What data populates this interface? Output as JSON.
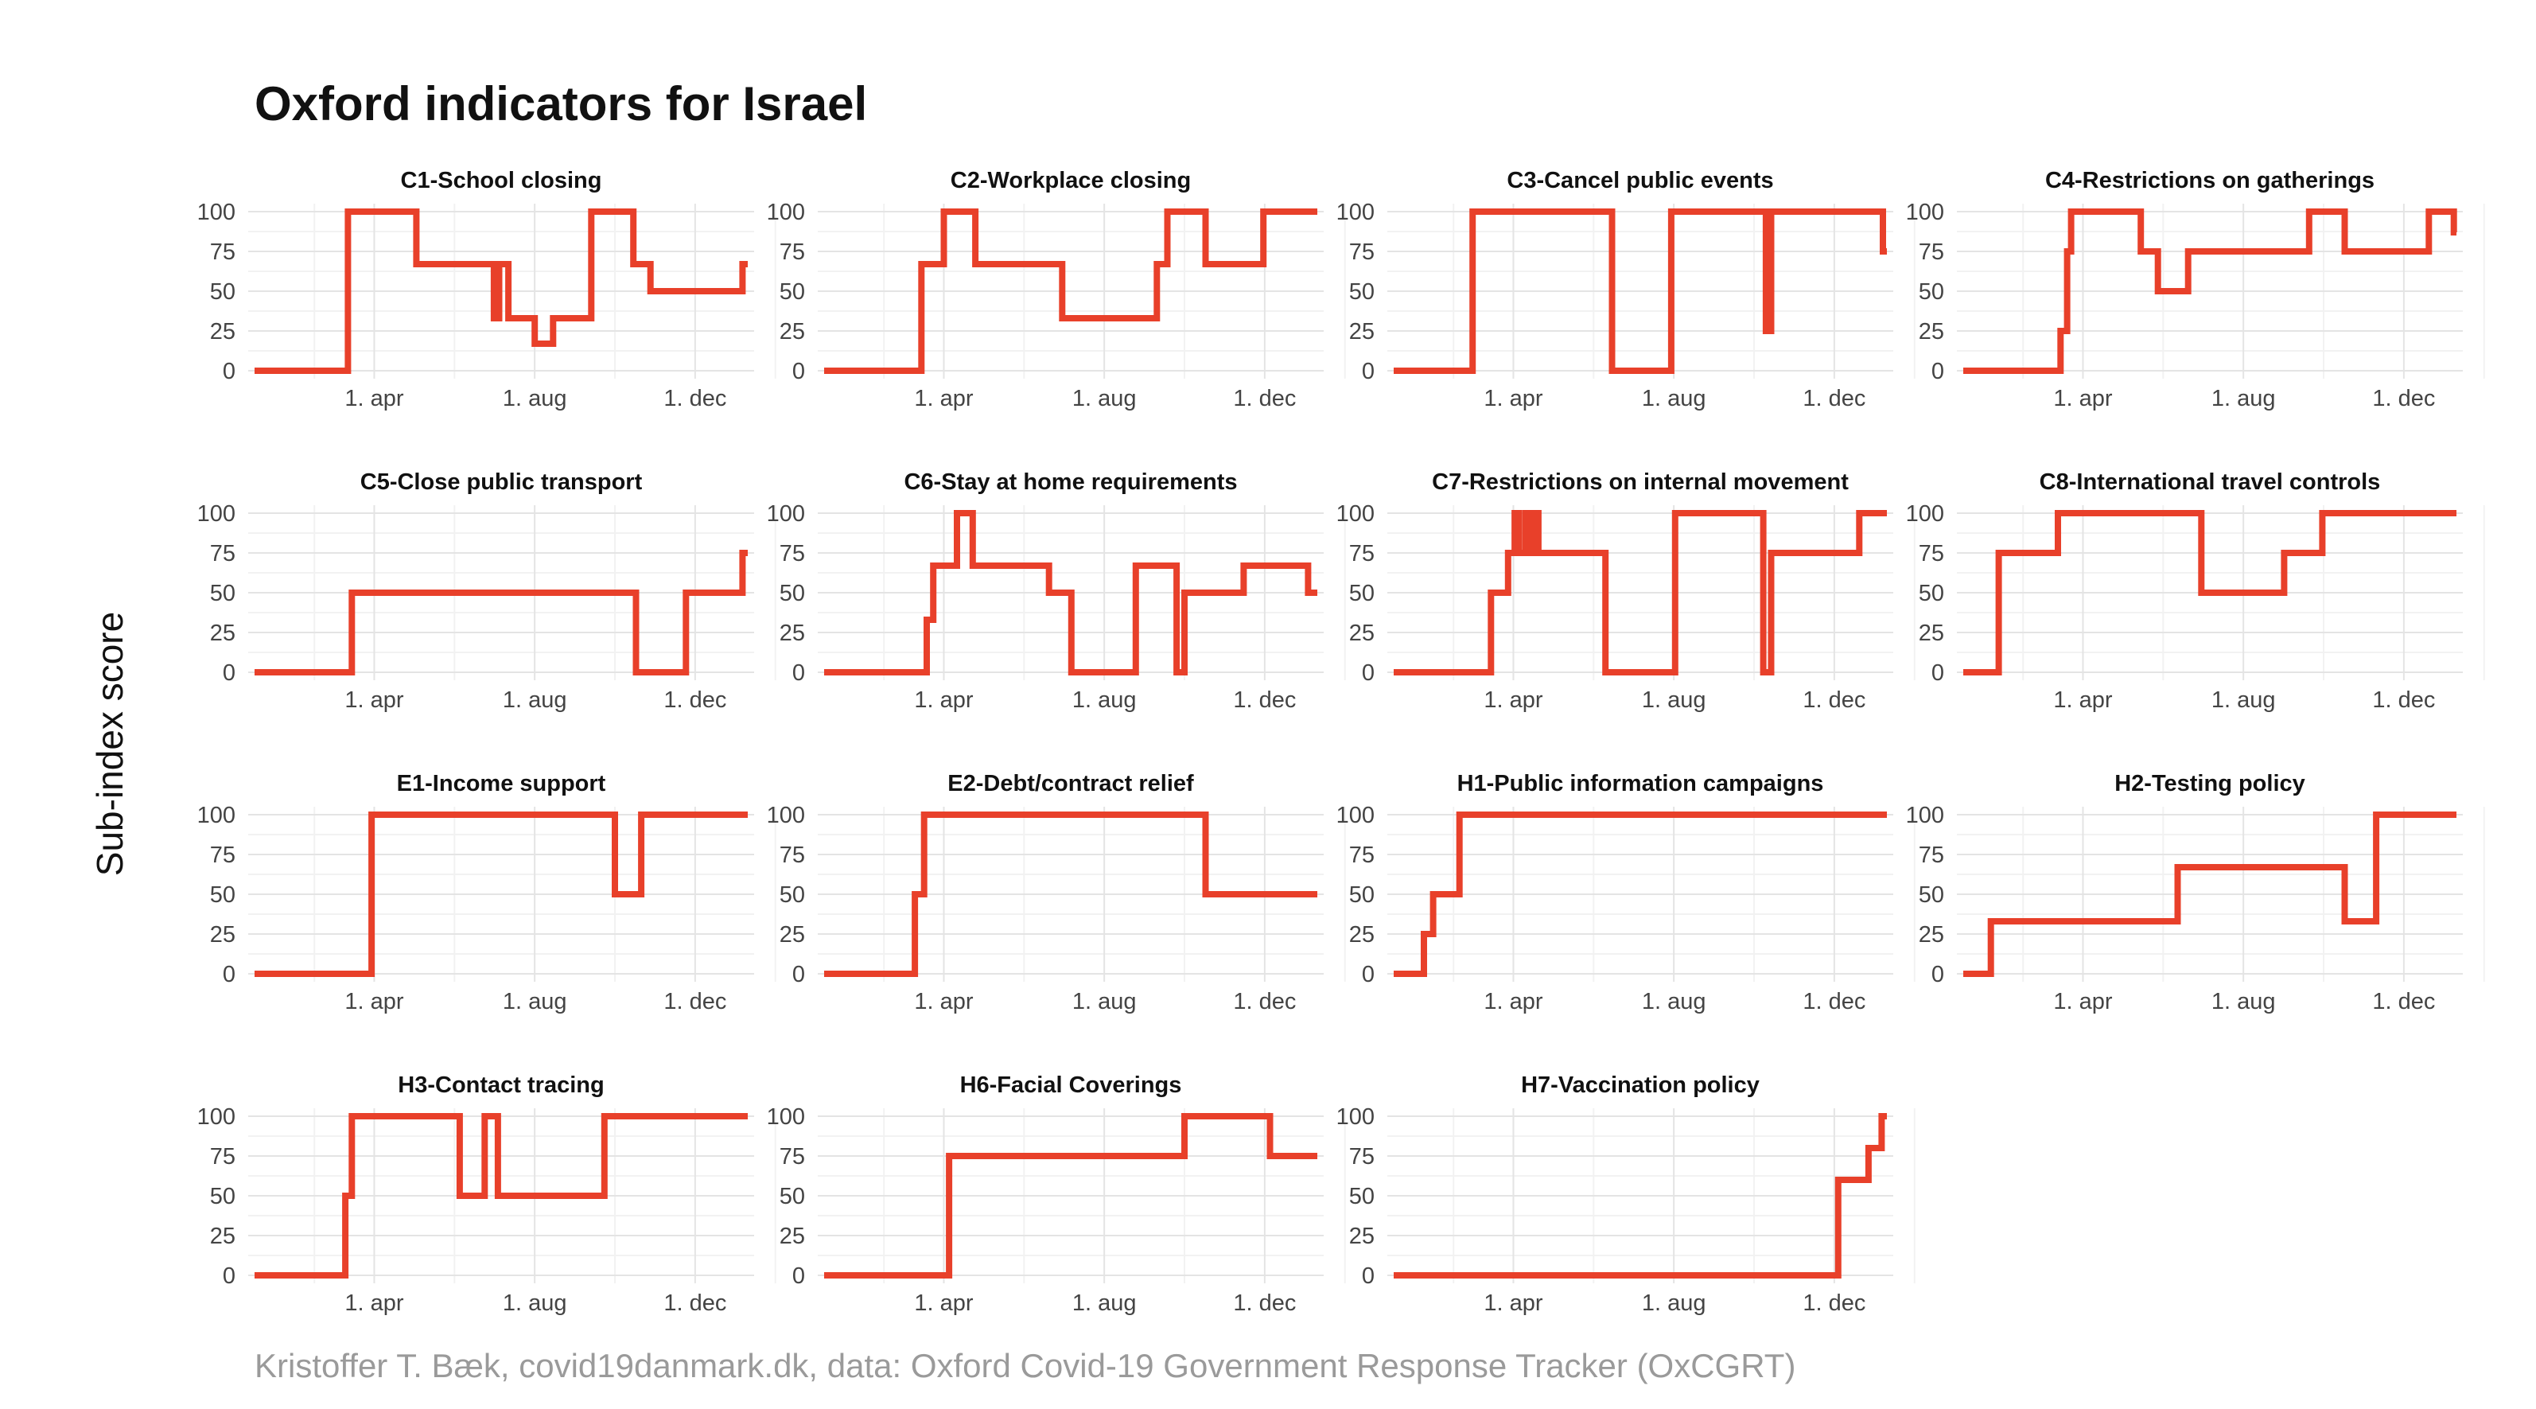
{
  "title": "Oxford indicators for Israel",
  "ylabel": "Sub-index score",
  "caption": "Kristoffer T. Bæk, covid19danmark.dk, data: Oxford Covid-19 Government Response Tracker (OxCGRT)",
  "line_color": "#e8402a",
  "chart_data": {
    "type": "line",
    "facet": true,
    "ylim": [
      0,
      100
    ],
    "yticks": [
      0,
      25,
      50,
      75,
      100
    ],
    "xlim": [
      "2020-01-01",
      "2021-01-10"
    ],
    "xticks": [
      {
        "value": "2020-04-01",
        "label": "1. apr"
      },
      {
        "value": "2020-08-01",
        "label": "1. aug"
      },
      {
        "value": "2020-12-01",
        "label": "1. dec"
      }
    ],
    "grid": true,
    "panels": [
      {
        "title": "C1-School closing",
        "x": [
          "2020-01-01",
          "2020-03-12",
          "2020-03-12",
          "2020-05-03",
          "2020-05-03",
          "2020-07-01",
          "2020-07-01",
          "2020-07-05",
          "2020-07-05",
          "2020-07-12",
          "2020-07-12",
          "2020-07-20",
          "2020-07-20",
          "2020-08-01",
          "2020-08-01",
          "2020-08-15",
          "2020-08-15",
          "2020-09-13",
          "2020-09-13",
          "2020-10-15",
          "2020-10-15",
          "2020-10-28",
          "2020-10-28",
          "2021-01-06",
          "2021-01-06",
          "2021-01-10"
        ],
        "y": [
          0,
          0,
          100,
          100,
          67,
          67,
          33,
          33,
          67,
          67,
          33,
          33,
          33,
          33,
          17,
          17,
          33,
          33,
          100,
          100,
          67,
          67,
          50,
          50,
          67,
          67
        ]
      },
      {
        "title": "C2-Workplace closing",
        "x": [
          "2020-01-01",
          "2020-03-15",
          "2020-03-15",
          "2020-04-01",
          "2020-04-01",
          "2020-04-25",
          "2020-04-25",
          "2020-06-30",
          "2020-06-30",
          "2020-09-10",
          "2020-09-10",
          "2020-09-18",
          "2020-09-18",
          "2020-10-17",
          "2020-10-17",
          "2020-11-30",
          "2020-11-30",
          "2021-01-10"
        ],
        "y": [
          0,
          0,
          67,
          67,
          100,
          100,
          67,
          67,
          33,
          33,
          67,
          67,
          100,
          100,
          67,
          67,
          100,
          100
        ]
      },
      {
        "title": "C3-Cancel public events",
        "x": [
          "2020-01-01",
          "2020-03-01",
          "2020-03-01",
          "2020-06-15",
          "2020-06-15",
          "2020-07-30",
          "2020-07-30",
          "2020-10-10",
          "2020-10-10",
          "2020-10-14",
          "2020-10-14",
          "2021-01-07",
          "2021-01-07",
          "2021-01-10"
        ],
        "y": [
          0,
          0,
          100,
          100,
          0,
          0,
          100,
          100,
          25,
          25,
          100,
          100,
          75,
          75
        ]
      },
      {
        "title": "C4-Restrictions on gatherings",
        "x": [
          "2020-01-01",
          "2020-03-15",
          "2020-03-15",
          "2020-03-20",
          "2020-03-20",
          "2020-03-23",
          "2020-03-23",
          "2020-05-15",
          "2020-05-15",
          "2020-05-28",
          "2020-05-28",
          "2020-06-20",
          "2020-06-20",
          "2020-09-20",
          "2020-09-20",
          "2020-10-17",
          "2020-10-17",
          "2020-12-20",
          "2020-12-20",
          "2021-01-08",
          "2021-01-08",
          "2021-01-10"
        ],
        "y": [
          0,
          0,
          25,
          25,
          75,
          75,
          100,
          100,
          75,
          75,
          50,
          50,
          75,
          75,
          100,
          100,
          75,
          75,
          100,
          100,
          87,
          87
        ]
      },
      {
        "title": "C5-Close public transport",
        "x": [
          "2020-01-01",
          "2020-03-15",
          "2020-03-15",
          "2020-10-17",
          "2020-10-17",
          "2020-11-24",
          "2020-11-24",
          "2021-01-06",
          "2021-01-06",
          "2021-01-10"
        ],
        "y": [
          0,
          0,
          50,
          50,
          0,
          0,
          50,
          50,
          75,
          75
        ]
      },
      {
        "title": "C6-Stay at home requirements",
        "x": [
          "2020-01-01",
          "2020-03-19",
          "2020-03-19",
          "2020-03-24",
          "2020-03-24",
          "2020-04-11",
          "2020-04-11",
          "2020-04-23",
          "2020-04-23",
          "2020-06-20",
          "2020-06-20",
          "2020-07-07",
          "2020-07-07",
          "2020-08-25",
          "2020-08-25",
          "2020-09-25",
          "2020-09-25",
          "2020-10-01",
          "2020-10-01",
          "2020-11-15",
          "2020-11-15",
          "2021-01-03",
          "2021-01-03",
          "2021-01-10"
        ],
        "y": [
          0,
          0,
          33,
          33,
          67,
          67,
          100,
          100,
          67,
          67,
          50,
          50,
          0,
          0,
          67,
          67,
          0,
          0,
          50,
          50,
          67,
          67,
          50,
          50
        ]
      },
      {
        "title": "C7-Restrictions on internal movement",
        "x": [
          "2020-01-01",
          "2020-03-15",
          "2020-03-15",
          "2020-03-28",
          "2020-03-28",
          "2020-04-02",
          "2020-04-02",
          "2020-04-05",
          "2020-04-05",
          "2020-04-10",
          "2020-04-10",
          "2020-04-12",
          "2020-04-12",
          "2020-04-16",
          "2020-04-16",
          "2020-04-20",
          "2020-04-20",
          "2020-06-10",
          "2020-06-10",
          "2020-08-02",
          "2020-08-02",
          "2020-10-08",
          "2020-10-08",
          "2020-10-14",
          "2020-10-14",
          "2020-12-20",
          "2020-12-20",
          "2021-01-10"
        ],
        "y": [
          0,
          0,
          50,
          50,
          75,
          75,
          100,
          100,
          75,
          75,
          100,
          100,
          75,
          75,
          100,
          100,
          75,
          75,
          0,
          0,
          100,
          100,
          0,
          0,
          75,
          75,
          100,
          100
        ]
      },
      {
        "title": "C8-International travel controls",
        "x": [
          "2020-01-01",
          "2020-01-28",
          "2020-01-28",
          "2020-03-13",
          "2020-03-13",
          "2020-06-30",
          "2020-06-30",
          "2020-09-01",
          "2020-09-01",
          "2020-09-30",
          "2020-09-30",
          "2020-11-30",
          "2020-11-30",
          "2021-01-10"
        ],
        "y": [
          0,
          0,
          75,
          75,
          100,
          100,
          50,
          50,
          75,
          75,
          100,
          100,
          100,
          100
        ]
      },
      {
        "title": "E1-Income support",
        "x": [
          "2020-01-01",
          "2020-03-30",
          "2020-03-30",
          "2020-10-01",
          "2020-10-01",
          "2020-10-21",
          "2020-10-21",
          "2021-01-10"
        ],
        "y": [
          0,
          0,
          100,
          100,
          50,
          50,
          100,
          100
        ]
      },
      {
        "title": "E2-Debt/contract relief",
        "x": [
          "2020-01-01",
          "2020-03-10",
          "2020-03-10",
          "2020-03-17",
          "2020-03-17",
          "2020-10-17",
          "2020-10-17",
          "2021-01-10"
        ],
        "y": [
          0,
          0,
          50,
          50,
          100,
          100,
          50,
          50
        ]
      },
      {
        "title": "H1-Public information campaigns",
        "x": [
          "2020-01-01",
          "2020-01-24",
          "2020-01-24",
          "2020-01-31",
          "2020-01-31",
          "2020-02-08",
          "2020-02-08",
          "2020-02-20",
          "2020-02-20",
          "2021-01-10"
        ],
        "y": [
          0,
          0,
          25,
          25,
          50,
          50,
          50,
          50,
          100,
          100
        ]
      },
      {
        "title": "H2-Testing policy",
        "x": [
          "2020-01-01",
          "2020-01-22",
          "2020-01-22",
          "2020-06-12",
          "2020-06-12",
          "2020-10-17",
          "2020-10-17",
          "2020-11-10",
          "2020-11-10",
          "2021-01-10"
        ],
        "y": [
          0,
          0,
          33,
          33,
          67,
          67,
          33,
          33,
          100,
          100
        ]
      },
      {
        "title": "H3-Contact tracing",
        "x": [
          "2020-01-01",
          "2020-03-10",
          "2020-03-10",
          "2020-03-15",
          "2020-03-15",
          "2020-06-05",
          "2020-06-05",
          "2020-06-24",
          "2020-06-24",
          "2020-07-04",
          "2020-07-04",
          "2020-09-23",
          "2020-09-23",
          "2021-01-10"
        ],
        "y": [
          0,
          0,
          50,
          50,
          100,
          100,
          50,
          50,
          100,
          100,
          50,
          50,
          100,
          100
        ]
      },
      {
        "title": "H6-Facial Coverings",
        "x": [
          "2020-01-01",
          "2020-04-05",
          "2020-04-05",
          "2020-10-01",
          "2020-10-01",
          "2020-12-05",
          "2020-12-05",
          "2021-01-10"
        ],
        "y": [
          0,
          0,
          75,
          75,
          100,
          100,
          75,
          75
        ]
      },
      {
        "title": "H7-Vaccination policy",
        "x": [
          "2020-01-01",
          "2020-12-04",
          "2020-12-04",
          "2020-12-27",
          "2020-12-27",
          "2021-01-06",
          "2021-01-06",
          "2021-01-10"
        ],
        "y": [
          0,
          0,
          60,
          60,
          80,
          80,
          100,
          100
        ]
      }
    ]
  }
}
